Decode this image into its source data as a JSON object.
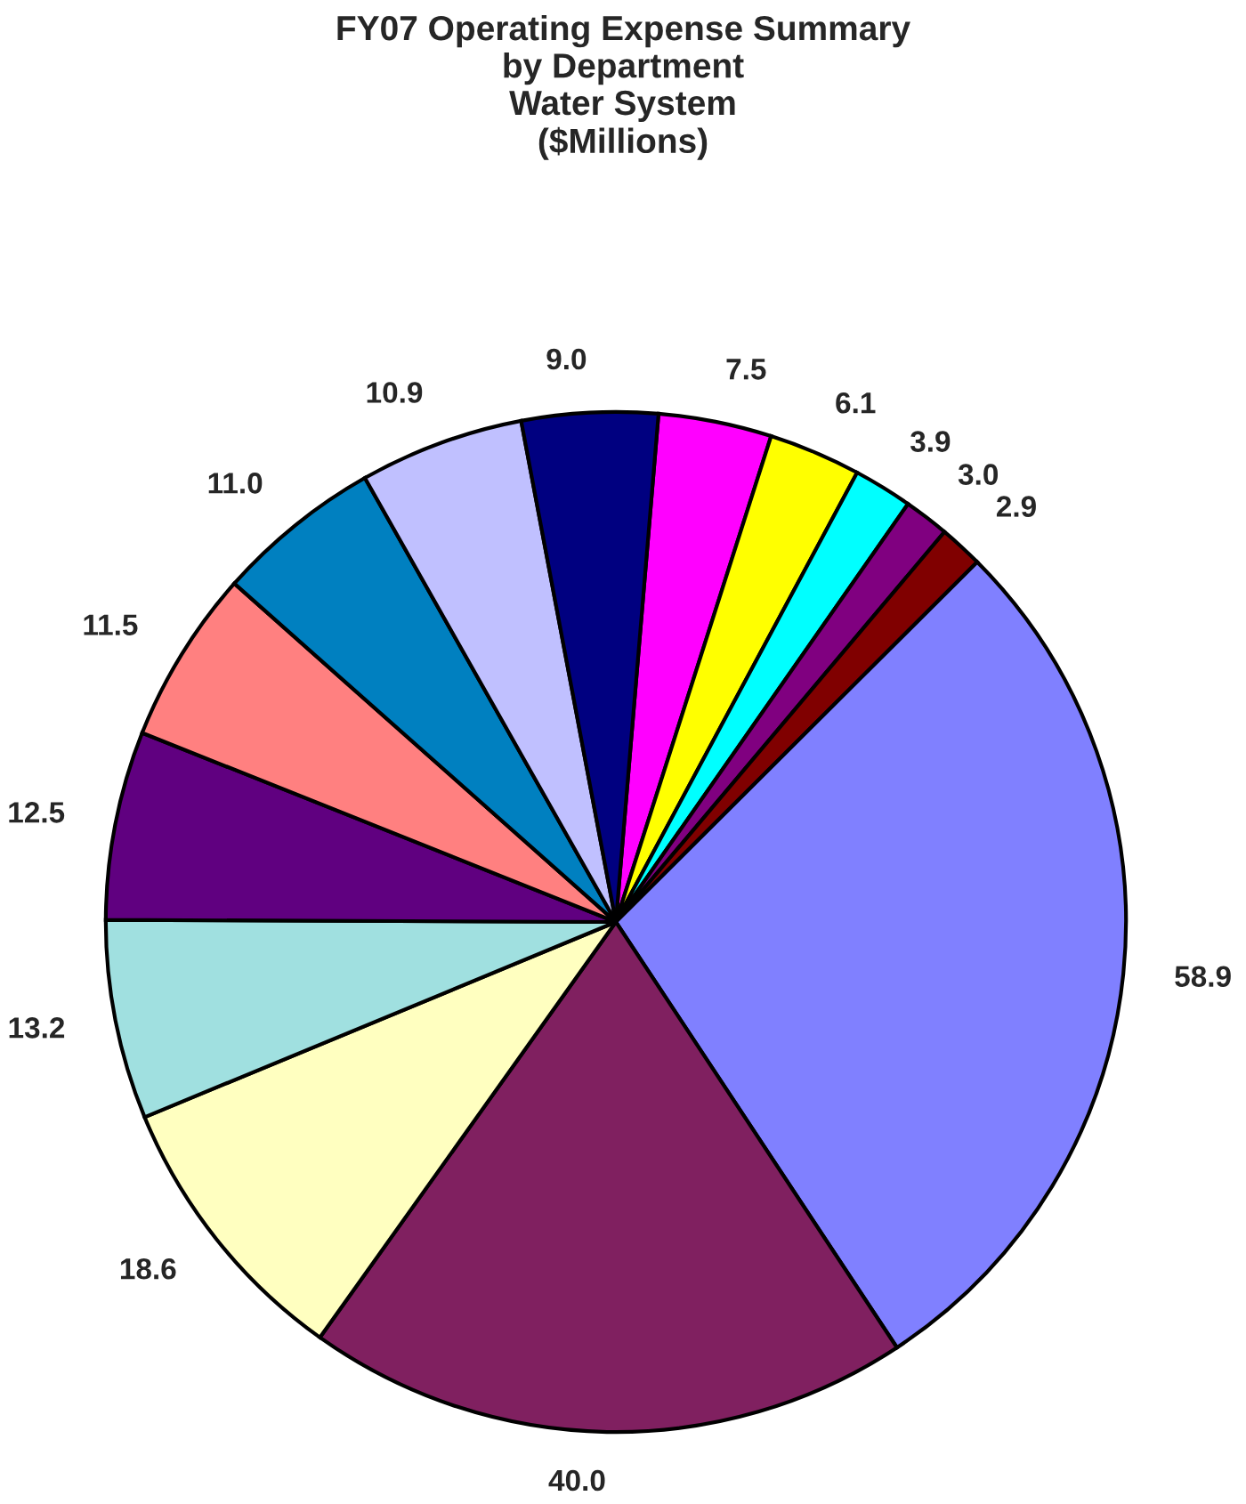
{
  "chart_data": {
    "type": "pie",
    "title": "FY07 Operating Expense Summary\nby Department\nWater System\n($Millions)",
    "categories": [
      null,
      null,
      null,
      null,
      null,
      null,
      null,
      null,
      null,
      null,
      null,
      null,
      null,
      null
    ],
    "values": [
      7.5,
      6.1,
      3.9,
      3.0,
      2.9,
      58.9,
      40.0,
      18.6,
      13.2,
      12.5,
      11.5,
      11.0,
      10.9,
      9.0
    ],
    "colors": [
      "#ff00ff",
      "#ffff00",
      "#00ffff",
      "#800080",
      "#800000",
      "#8080ff",
      "#802060",
      "#ffffc0",
      "#a0e0e0",
      "#600080",
      "#ff8080",
      "#0080c0",
      "#c0c0ff",
      "#000080"
    ],
    "value_labels": [
      "7.5",
      "6.1",
      "3.9",
      "3.0",
      "2.9",
      "58.9",
      "40.0",
      "18.6",
      "13.2",
      "12.5",
      "11.5",
      "11.0",
      "10.9",
      "9.0"
    ],
    "legend": false
  }
}
